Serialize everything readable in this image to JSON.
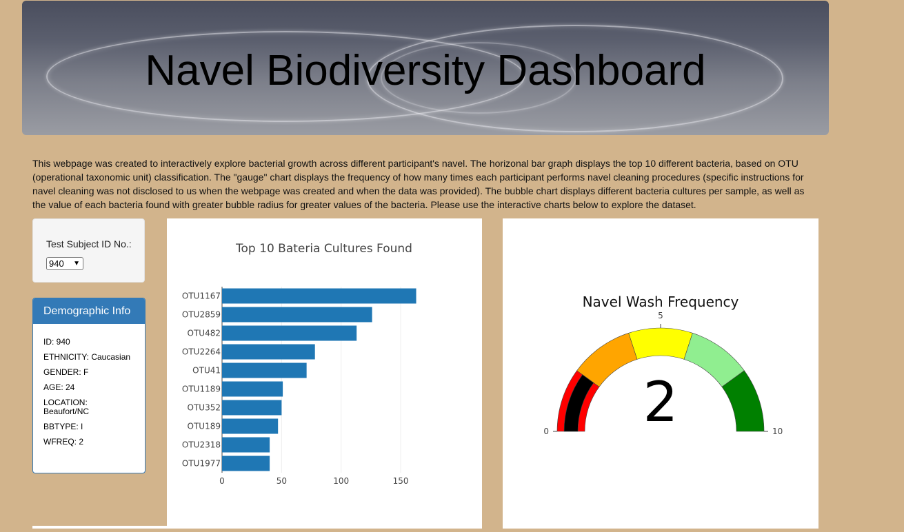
{
  "header": {
    "title": "Navel Biodiversity Dashboard"
  },
  "intro": "This webpage was created to interactively explore bacterial growth across different participant's navel. The horizonal bar graph displays the top 10 different bacteria, based on OTU (operational taxonomic unit) classification. The \"gauge\" chart displays the frequency of how many times each participant performs navel cleaning procedures (specific instructions for navel cleaning was not disclosed to us when the webpage was created and when the data was provided). The bubble chart displays different bacteria cultures per sample, as well as the value of each bacteria found with greater bubble radius for greater values of the bacteria. Please use the interactive charts below to explore the dataset.",
  "selector": {
    "label": "Test Subject ID No.:",
    "value": "940"
  },
  "demographics": {
    "title": "Demographic Info",
    "lines": [
      "ID: 940",
      "ETHNICITY: Caucasian",
      "GENDER: F",
      "AGE: 24",
      "LOCATION: Beaufort/NC",
      "BBTYPE: I",
      "WFREQ: 2"
    ]
  },
  "chart_data": [
    {
      "type": "bar",
      "orientation": "horizontal",
      "title": "Top 10 Bateria Cultures Found",
      "categories": [
        "OTU1167",
        "OTU2859",
        "OTU482",
        "OTU2264",
        "OTU41",
        "OTU1189",
        "OTU352",
        "OTU189",
        "OTU2318",
        "OTU1977"
      ],
      "values": [
        163,
        126,
        113,
        78,
        71,
        51,
        50,
        47,
        40,
        40
      ],
      "xlim": [
        0,
        165
      ],
      "xticks": [
        0,
        50,
        100,
        150
      ],
      "color": "#1f77b4",
      "grid": true
    },
    {
      "type": "gauge",
      "title": "Navel Wash Frequency",
      "value": 2,
      "range": [
        0,
        10
      ],
      "tick_labels": [
        "0",
        "5",
        "10"
      ],
      "bands": [
        {
          "from": 0,
          "to": 2,
          "color": "#ff0000"
        },
        {
          "from": 2,
          "to": 4,
          "color": "#ffa500"
        },
        {
          "from": 4,
          "to": 6,
          "color": "#ffff00"
        },
        {
          "from": 6,
          "to": 8,
          "color": "#90ee90"
        },
        {
          "from": 8,
          "to": 10,
          "color": "#008000"
        }
      ],
      "bar_color": "#000000"
    }
  ]
}
